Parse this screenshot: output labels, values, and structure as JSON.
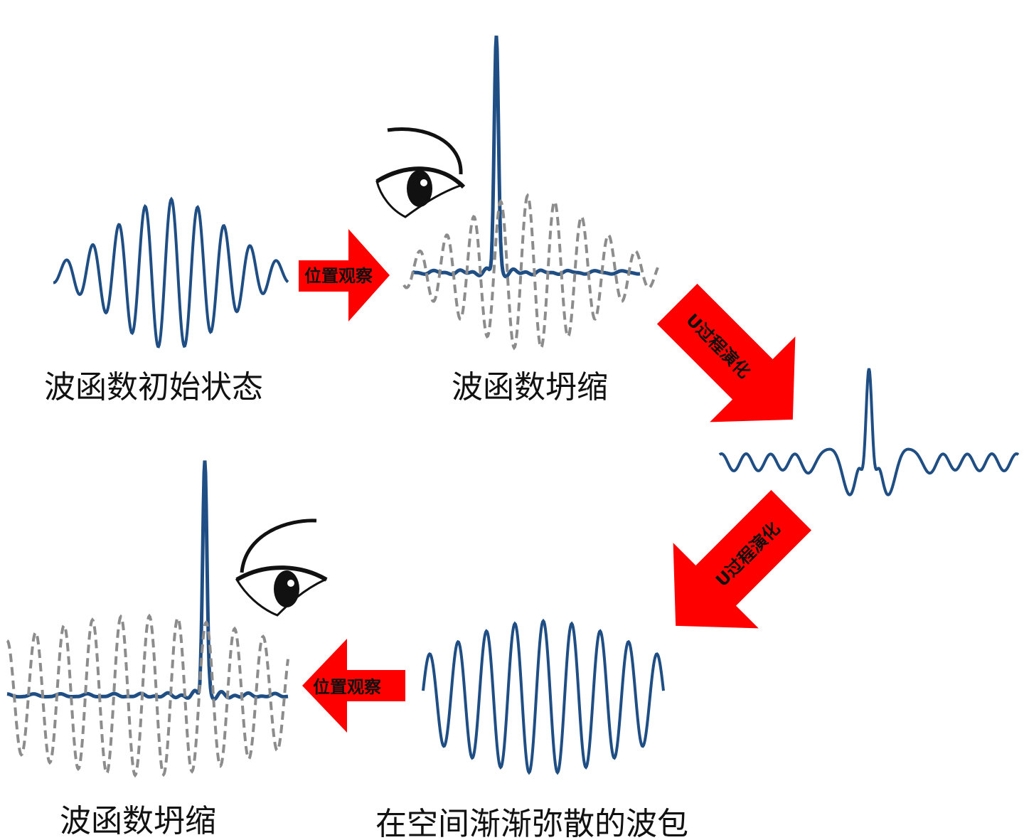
{
  "colors": {
    "wave": "#1f4e85",
    "dashed_wave": "#8c8c8c",
    "arrow": "#ff0000",
    "text": "#111111"
  },
  "captions": {
    "initial_state": "波函数初始状态",
    "collapse_1": "波函数坍缩",
    "spreading_packet": "在空间渐渐弥散的波包",
    "collapse_2": "波函数坍缩"
  },
  "arrows": {
    "observe_1": "位置观察",
    "evolve_1": "U过程演化",
    "evolve_2": "U过程演化",
    "observe_2": "位置观察"
  },
  "icons": [
    "eye-icon",
    "eye-icon"
  ]
}
